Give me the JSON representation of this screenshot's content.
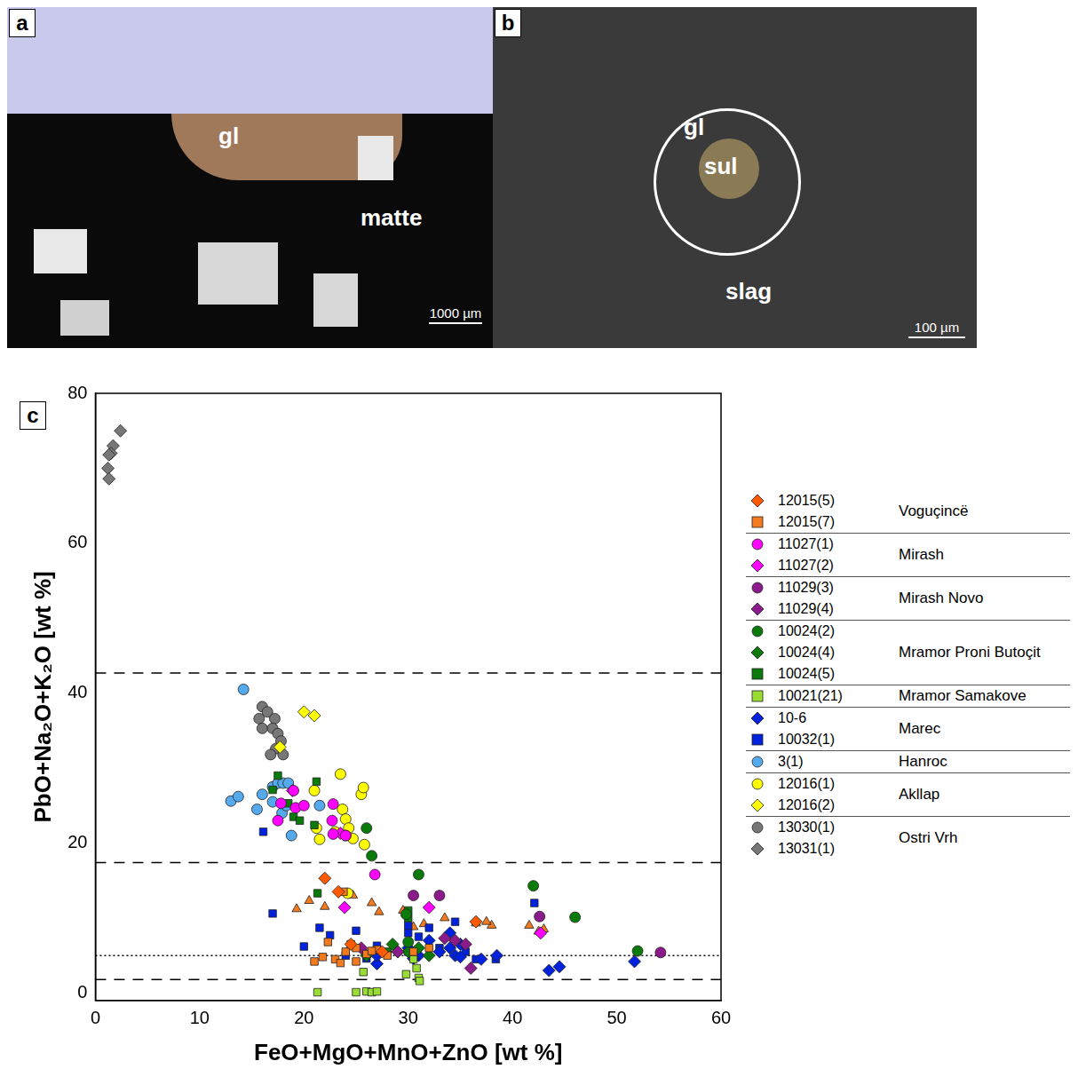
{
  "figure": {
    "panels": [
      {
        "letter": "a",
        "labels": [
          "gl",
          "matte"
        ],
        "scale_bar": "1000 µm"
      },
      {
        "letter": "b",
        "labels": [
          "gl",
          "sul",
          "slag"
        ],
        "scale_bar": "100 µm"
      }
    ],
    "chart_letter": "c"
  },
  "chart_data": {
    "type": "scatter",
    "x_label": "FeO+MgO+MnO+ZnO [wt %]",
    "y_label": "PbO+Na₂O+K₂O [wt %]",
    "xlim": [
      0,
      60
    ],
    "xticks": [
      0,
      10,
      20,
      30,
      40,
      50,
      60
    ],
    "ylim": [
      -1,
      80
    ],
    "yticks": [
      0,
      20,
      40,
      60,
      80
    ],
    "grid": false,
    "legend": "right",
    "legend_groups": [
      {
        "label": "Voguçincë",
        "series": [
          "12015(5)",
          "12015(7)"
        ]
      },
      {
        "label": "Mirash",
        "series": [
          "11027(1)",
          "11027(2)"
        ]
      },
      {
        "label": "Mirash Novo",
        "series": [
          "11029(3)",
          "11029(4)"
        ]
      },
      {
        "label": "Mramor Proni Butoçit",
        "series": [
          "10024(2)",
          "10024(4)",
          "10024(5)"
        ]
      },
      {
        "label": "Mramor Samakove",
        "series": [
          "10021(21)"
        ]
      },
      {
        "label": "Marec",
        "series": [
          "10-6",
          "10032(1)"
        ]
      },
      {
        "label": "Hanroc",
        "series": [
          "3(1)"
        ]
      },
      {
        "label": "Akllap",
        "series": [
          "12016(1)",
          "12016(2)"
        ]
      },
      {
        "label": "Ostri Vrh",
        "series": [
          "13030(1)",
          "13031(1)"
        ]
      }
    ],
    "series": [
      {
        "name": "12015(5)",
        "color": "#ff5a00",
        "marker": "diamond",
        "x": [
          22,
          23.3,
          24.5,
          36.5,
          27.5
        ],
        "values": [
          15.3,
          13.5,
          6.5,
          9.5,
          5.5
        ]
      },
      {
        "name": "12015(7)",
        "color": "#f47a1e",
        "marker": "square",
        "x": [
          21,
          21.8,
          22.3,
          23,
          23.5,
          24,
          24.5,
          25,
          25,
          26,
          27,
          28,
          32,
          30.5,
          23.8,
          26.5
        ],
        "values": [
          4.2,
          4.8,
          6.8,
          4.5,
          4,
          5.5,
          6.5,
          4.2,
          6,
          5.2,
          5.8,
          5,
          6,
          5.5,
          13.5,
          5.6
        ]
      },
      {
        "name": "11027(1)",
        "color": "#ff00ff",
        "marker": "circle",
        "x": [
          17.8,
          17.5,
          19.2,
          20,
          22.8,
          22.7,
          22.8,
          24,
          19,
          26.8
        ],
        "values": [
          25.3,
          23,
          24.7,
          25,
          25.2,
          23,
          21.2,
          21,
          27,
          15.8
        ]
      },
      {
        "name": "11027(2)",
        "color": "#ff00ff",
        "marker": "diamond",
        "x": [
          18.9,
          23.9,
          32,
          42.7,
          23.5
        ],
        "values": [
          27,
          11.4,
          11.4,
          8,
          21.3
        ]
      },
      {
        "name": "11029(3)",
        "color": "#8b1a8b",
        "marker": "circle",
        "x": [
          30.5,
          33,
          42.6,
          54.2,
          24
        ],
        "values": [
          13,
          13,
          10.2,
          5.4,
          21
        ]
      },
      {
        "name": "11029(4)",
        "color": "#8b1a8b",
        "marker": "diamond",
        "x": [
          34.5,
          35.5,
          33.5,
          36,
          25.5,
          29
        ],
        "values": [
          7,
          6.5,
          7.3,
          3.3,
          6,
          5.5
        ]
      },
      {
        "name": "10024(2)",
        "color": "#0a7a0a",
        "marker": "circle",
        "x": [
          26,
          26.5,
          31,
          42,
          46,
          52,
          29.8,
          30
        ],
        "values": [
          22,
          18.3,
          15.8,
          14.3,
          10.1,
          5.6,
          10.5,
          6.8
        ]
      },
      {
        "name": "10024(4)",
        "color": "#0a7a0a",
        "marker": "diamond",
        "x": [
          26,
          28.5,
          30,
          32,
          31
        ],
        "values": [
          5,
          6.5,
          5.5,
          5,
          6
        ]
      },
      {
        "name": "10024(5)",
        "color": "#0a7a0a",
        "marker": "square",
        "x": [
          17,
          17.5,
          18.5,
          19,
          19.6,
          21,
          21.2,
          21.3,
          20,
          30,
          30,
          28
        ],
        "values": [
          27.1,
          29,
          25.3,
          23.5,
          23,
          22.4,
          28.2,
          13.3,
          25,
          11,
          10,
          5.5
        ]
      },
      {
        "name": "10021(21)",
        "color": "#99dd33",
        "marker": "square",
        "x": [
          21.3,
          25,
          26,
          26.5,
          27,
          25.7,
          29.8,
          30.8,
          31,
          31.1,
          30.5
        ],
        "values": [
          0.1,
          0.1,
          0.2,
          0.1,
          0.2,
          2.8,
          2.5,
          3.3,
          2,
          1.6,
          4.5
        ]
      },
      {
        "name": "10-6",
        "color": "#0022dd",
        "marker": "diamond",
        "x": [
          27,
          27,
          29,
          30,
          31,
          32,
          33,
          34,
          34.5,
          35,
          34,
          35,
          37,
          43.5,
          44.5,
          51.7,
          38.5,
          30.5
        ],
        "values": [
          3.9,
          5,
          5.5,
          6,
          5,
          7,
          5.5,
          6,
          5,
          4.8,
          8,
          6.5,
          4.5,
          3,
          3.5,
          4.2,
          5,
          4.6
        ]
      },
      {
        "name": "10032(1)",
        "color": "#0022dd",
        "marker": "square",
        "x": [
          16.1,
          17,
          20,
          21.5,
          22.5,
          25,
          27,
          30,
          30,
          30,
          31,
          32,
          33,
          34.5,
          35.5,
          38.4,
          42.1,
          24,
          26,
          36.5
        ],
        "values": [
          21.5,
          10.6,
          6.2,
          8.7,
          7.7,
          8.3,
          6.3,
          9,
          8,
          5.5,
          7.5,
          8.7,
          6,
          9.5,
          5.5,
          4.5,
          12,
          5,
          4.6,
          4.5
        ]
      },
      {
        "name": "3(1)",
        "color": "#55aaee",
        "marker": "circle",
        "x": [
          14.2,
          13,
          13.7,
          15.5,
          16,
          17,
          17.5,
          18,
          18.5,
          17.9,
          18.3,
          18.8,
          21.5,
          17
        ],
        "values": [
          40.5,
          25.6,
          26.2,
          24.5,
          26.5,
          27.5,
          28,
          28,
          28,
          24,
          25,
          21,
          25,
          25.5
        ]
      },
      {
        "name": "12016(1)",
        "color": "#ffff00",
        "marker": "circle",
        "x": [
          21,
          23.5,
          23.7,
          24,
          24.3,
          25.5,
          25.7,
          25.8,
          24.7,
          21.5,
          21.2,
          23,
          24.2
        ],
        "values": [
          27,
          29.2,
          24.5,
          23.2,
          22,
          26.5,
          27.4,
          19.8,
          20.6,
          20.5,
          22,
          21.5,
          13.3
        ]
      },
      {
        "name": "12016(2)",
        "color": "#ffff00",
        "marker": "diamond",
        "x": [
          20,
          21,
          17.7
        ],
        "values": [
          37.5,
          37,
          32.8
        ]
      },
      {
        "name": "13030(1)",
        "color": "#777777",
        "marker": "circle",
        "x": [
          16,
          16.5,
          15.7,
          17.2,
          16,
          17,
          17.5,
          17.8,
          17.3,
          18,
          16.8
        ],
        "values": [
          38.2,
          37.5,
          36.6,
          36.6,
          35.3,
          35.3,
          34.6,
          33.6,
          32.6,
          31.8,
          31.8
        ]
      },
      {
        "name": "13031(1)",
        "color": "#777777",
        "marker": "diamond",
        "x": [
          2.4,
          1.7,
          1.5,
          1.3,
          1.2,
          1.3
        ],
        "values": [
          75,
          73,
          72,
          71.8,
          70,
          68.6
        ]
      },
      {
        "color": "#f47a1e",
        "marker": "triangle",
        "x": [
          19.3,
          20.5,
          22,
          24.7,
          26.5,
          27.2,
          29.5,
          33.5,
          36.5,
          38,
          41.6,
          42.5,
          43,
          30.5,
          31.5,
          37.5
        ],
        "values": [
          11.2,
          12.3,
          11.5,
          13,
          12,
          10.8,
          11,
          10,
          9.3,
          9,
          9,
          8.2,
          8.5,
          8.8,
          9.2,
          9.5
        ]
      },
      {
        "type": "line",
        "color": "#000000",
        "line_style": "dashed",
        "x": [
          0,
          60
        ],
        "values": [
          42.7,
          42.7
        ]
      },
      {
        "type": "line",
        "color": "#000000",
        "line_style": "dashed",
        "x": [
          0,
          60
        ],
        "values": [
          17.4,
          17.4
        ]
      },
      {
        "type": "line",
        "color": "#000000",
        "line_style": "dotted",
        "x": [
          0,
          60
        ],
        "values": [
          5,
          5
        ]
      },
      {
        "type": "line",
        "color": "#000000",
        "line_style": "dashed",
        "x": [
          0,
          60
        ],
        "values": [
          1.8,
          1.8
        ]
      }
    ]
  }
}
